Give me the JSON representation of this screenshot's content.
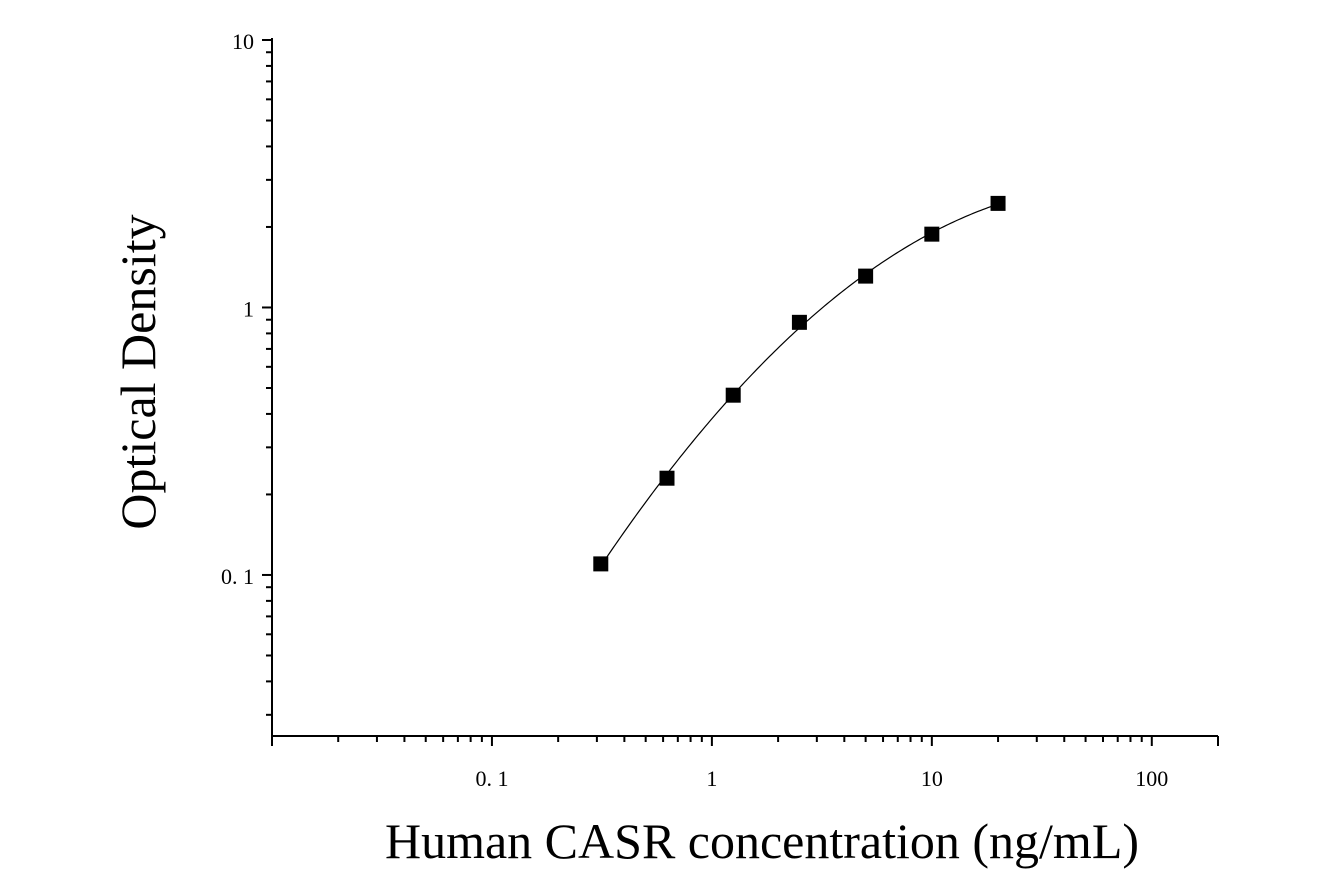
{
  "chart_data": {
    "type": "scatter",
    "xlabel": "Human CASR concentration (ng/mL)",
    "ylabel": "Optical Density",
    "x_scale": "log",
    "y_scale": "log",
    "xlim": [
      0.01,
      200
    ],
    "ylim": [
      0.025,
      10
    ],
    "x_tick_labels": [
      "0. 1",
      "1",
      "10",
      "100"
    ],
    "x_tick_values": [
      0.1,
      1,
      10,
      100
    ],
    "y_tick_labels": [
      "0. 1",
      "1",
      "10"
    ],
    "y_tick_values": [
      0.1,
      1,
      10
    ],
    "grid": false,
    "marker": "square",
    "marker_color": "#000000",
    "line_color": "#000000",
    "series": [
      {
        "x": [
          0.3125,
          0.625,
          1.25,
          2.5,
          5,
          10,
          20
        ],
        "y": [
          0.11,
          0.23,
          0.47,
          0.88,
          1.31,
          1.88,
          2.45
        ]
      }
    ],
    "fit_curve": {
      "type": "smooth",
      "x_range": [
        0.3125,
        20
      ]
    }
  }
}
